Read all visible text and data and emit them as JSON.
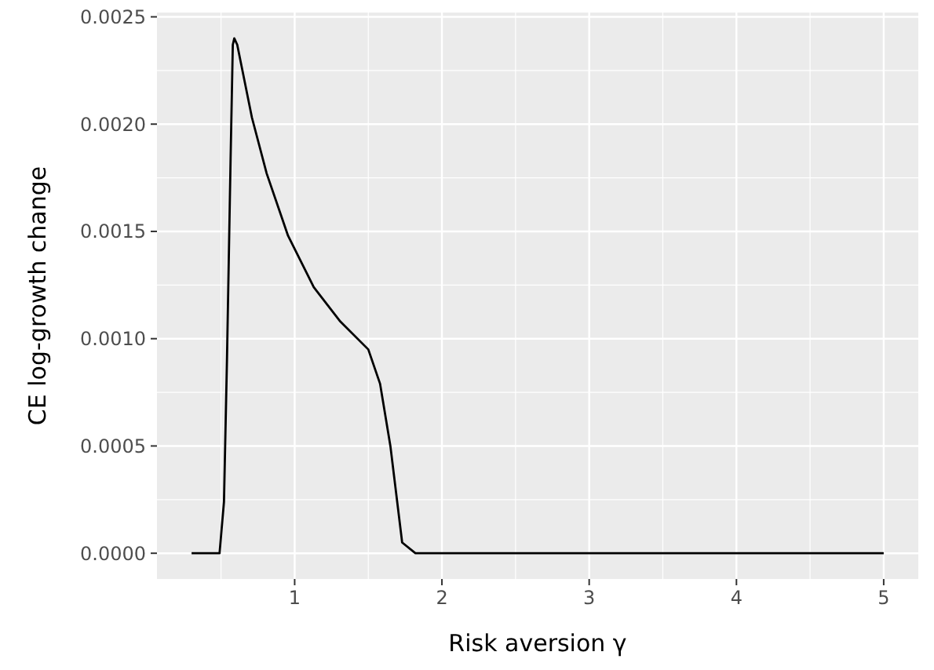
{
  "chart_data": {
    "type": "line",
    "xlabel": "Risk aversion γ",
    "ylabel": "CE log-growth change",
    "x": [
      0.3,
      0.49,
      0.52,
      0.54,
      0.565,
      0.58,
      0.59,
      0.61,
      0.71,
      0.81,
      0.955,
      1.13,
      1.31,
      1.5,
      1.58,
      1.65,
      1.73,
      1.82,
      5.0
    ],
    "series": [
      {
        "color": "#000000",
        "values": [
          0,
          0,
          0.00024,
          0.00089,
          0.00184,
          0.00237,
          0.0024,
          0.00237,
          0.00203,
          0.00177,
          0.00148,
          0.00124,
          0.00108,
          0.00095,
          0.00079,
          0.0005,
          5e-05,
          0,
          0
        ]
      }
    ],
    "xlim": [
      0.065,
      5.235
    ],
    "ylim": [
      -0.00012,
      0.00252
    ],
    "xticks": [
      1,
      2,
      3,
      4,
      5
    ],
    "yticks": [
      {
        "value": 0,
        "label": "0.0000"
      },
      {
        "value": 0.0005,
        "label": "0.0005"
      },
      {
        "value": 0.001,
        "label": "0.0010"
      },
      {
        "value": 0.0015,
        "label": "0.0015"
      },
      {
        "value": 0.002,
        "label": "0.0020"
      },
      {
        "value": 0.0025,
        "label": "0.0025"
      }
    ],
    "grid": true,
    "line_style": "solid",
    "marker": "none"
  }
}
